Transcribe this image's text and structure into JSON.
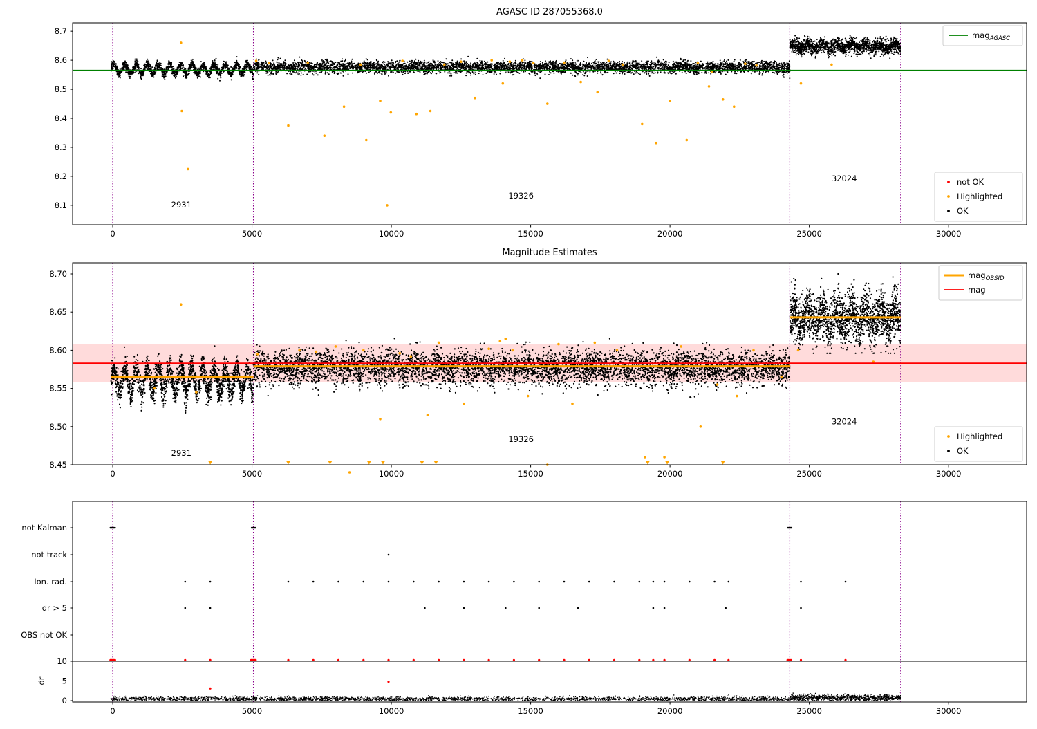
{
  "colors": {
    "ok": "#000000",
    "highlighted": "#ffa500",
    "not_ok": "#ff0000",
    "mag_agasc_line": "#008000",
    "mag_obsid_line": "#ffa500",
    "mag_line": "#ff0000",
    "mag_band": "rgba(255,0,0,0.14)",
    "divider": "#8b008b",
    "legend_border": "#cccccc",
    "axis": "#000000"
  },
  "chart_data": [
    {
      "id": "agasc-plot",
      "type": "scatter",
      "title": "AGASC ID 287055368.0",
      "xlim": [
        -1440,
        32800
      ],
      "ylim": [
        8.033,
        8.729
      ],
      "xticks": [
        0,
        5000,
        10000,
        15000,
        20000,
        25000,
        30000
      ],
      "yticks": [
        8.1,
        8.2,
        8.3,
        8.4,
        8.5,
        8.6,
        8.7
      ],
      "ytick_decimals": 1,
      "dividers": [
        0,
        5050,
        24300,
        28280
      ],
      "hline": {
        "y": 8.565,
        "legend_label": {
          "main": "mag",
          "sub": "AGASC"
        }
      },
      "clusters": [
        {
          "x0": -60,
          "x1": 5050,
          "mean": 8.569,
          "wave_amp": 0.016,
          "wave_period": 400,
          "noise": 0.008,
          "n": 1700,
          "clamp": [
            8.528,
            8.612
          ],
          "seed": 11
        },
        {
          "x0": 5050,
          "x1": 24300,
          "mean": 8.576,
          "wave_amp": 0.003,
          "wave_period": 800,
          "noise": 0.01,
          "n": 5200,
          "clamp": [
            8.538,
            8.615
          ],
          "seed": 12
        },
        {
          "x0": 24300,
          "x1": 28280,
          "mean": 8.648,
          "wave_amp": 0.008,
          "wave_period": 520,
          "noise": 0.012,
          "n": 1700,
          "clamp": [
            8.603,
            8.697
          ],
          "seed": 13
        }
      ],
      "highlighted": [
        [
          2450,
          8.66
        ],
        [
          2480,
          8.425
        ],
        [
          2700,
          8.225
        ],
        [
          5150,
          8.598
        ],
        [
          5600,
          8.59
        ],
        [
          6300,
          8.375
        ],
        [
          7000,
          8.592
        ],
        [
          7600,
          8.34
        ],
        [
          8300,
          8.44
        ],
        [
          8900,
          8.585
        ],
        [
          9100,
          8.325
        ],
        [
          9600,
          8.46
        ],
        [
          9850,
          8.1
        ],
        [
          9980,
          8.42
        ],
        [
          10400,
          8.598
        ],
        [
          10900,
          8.415
        ],
        [
          11400,
          8.425
        ],
        [
          11900,
          8.585
        ],
        [
          12500,
          8.595
        ],
        [
          13000,
          8.47
        ],
        [
          13600,
          8.6
        ],
        [
          14000,
          8.52
        ],
        [
          14250,
          8.595
        ],
        [
          14700,
          8.6
        ],
        [
          15100,
          8.59
        ],
        [
          15600,
          8.45
        ],
        [
          16200,
          8.592
        ],
        [
          16800,
          8.525
        ],
        [
          17400,
          8.49
        ],
        [
          17800,
          8.598
        ],
        [
          18300,
          8.585
        ],
        [
          19000,
          8.38
        ],
        [
          19500,
          8.315
        ],
        [
          20000,
          8.46
        ],
        [
          20600,
          8.325
        ],
        [
          21000,
          8.59
        ],
        [
          21400,
          8.51
        ],
        [
          21500,
          8.56
        ],
        [
          21900,
          8.465
        ],
        [
          22300,
          8.44
        ],
        [
          22700,
          8.588
        ],
        [
          23100,
          8.582
        ],
        [
          24700,
          8.52
        ],
        [
          25800,
          8.585
        ]
      ],
      "annotations": [
        {
          "text": "2931",
          "x": 2100,
          "y": 8.093
        },
        {
          "text": "19326",
          "x": 14200,
          "y": 8.124
        },
        {
          "text": "32024",
          "x": 25800,
          "y": 8.183
        }
      ],
      "marker_legend": [
        {
          "label": "not OK",
          "color_key": "not_ok"
        },
        {
          "label": "Highlighted",
          "color_key": "highlighted"
        },
        {
          "label": "OK",
          "color_key": "ok"
        }
      ]
    },
    {
      "id": "magnitude-estimates-plot",
      "type": "scatter",
      "title": "Magnitude Estimates",
      "xlim": [
        -1440,
        32800
      ],
      "ylim": [
        8.45,
        8.7145
      ],
      "xticks": [
        0,
        5000,
        10000,
        15000,
        20000,
        25000,
        30000
      ],
      "yticks": [
        8.45,
        8.5,
        8.55,
        8.6,
        8.65,
        8.7
      ],
      "ytick_decimals": 2,
      "dividers": [
        0,
        5050,
        24300,
        28280
      ],
      "mag_line": {
        "y": 8.583,
        "band": [
          8.558,
          8.608
        ],
        "legend_label": "mag"
      },
      "obsid_segments": [
        {
          "x0": -60,
          "x1": 5050,
          "y": 8.565
        },
        {
          "x0": 5050,
          "x1": 24300,
          "y": 8.579
        },
        {
          "x0": 24300,
          "x1": 28280,
          "y": 8.643
        }
      ],
      "obsid_legend_label": {
        "main": "mag",
        "sub": "OBSID"
      },
      "clusters": [
        {
          "x0": -60,
          "x1": 5050,
          "mean": 8.561,
          "wave_amp": 0.016,
          "wave_period": 400,
          "noise": 0.009,
          "n": 1900,
          "clamp": [
            8.518,
            8.606
          ],
          "seed": 21
        },
        {
          "x0": 5050,
          "x1": 24300,
          "mean": 8.577,
          "wave_amp": 0.003,
          "wave_period": 800,
          "noise": 0.011,
          "n": 5400,
          "clamp": [
            8.536,
            8.618
          ],
          "seed": 22
        },
        {
          "x0": 24300,
          "x1": 28280,
          "mean": 8.642,
          "wave_amp": 0.01,
          "wave_period": 520,
          "noise": 0.016,
          "n": 1800,
          "clamp": [
            8.596,
            8.7
          ],
          "seed": 23
        }
      ],
      "highlighted": [
        [
          1500,
          8.55
        ],
        [
          2450,
          8.66
        ],
        [
          3000,
          8.545
        ],
        [
          5200,
          8.595
        ],
        [
          6700,
          8.6
        ],
        [
          7300,
          8.598
        ],
        [
          8000,
          8.605
        ],
        [
          8500,
          8.44
        ],
        [
          9000,
          8.6
        ],
        [
          9600,
          8.51
        ],
        [
          10300,
          8.596
        ],
        [
          10700,
          8.592
        ],
        [
          11300,
          8.515
        ],
        [
          11700,
          8.61
        ],
        [
          12600,
          8.53
        ],
        [
          13500,
          8.602
        ],
        [
          13900,
          8.612
        ],
        [
          14100,
          8.615
        ],
        [
          14350,
          8.6
        ],
        [
          14900,
          8.54
        ],
        [
          15600,
          8.45
        ],
        [
          16000,
          8.608
        ],
        [
          16500,
          8.53
        ],
        [
          17300,
          8.61
        ],
        [
          18100,
          8.6
        ],
        [
          19100,
          8.46
        ],
        [
          19800,
          8.46
        ],
        [
          20400,
          8.605
        ],
        [
          21100,
          8.5
        ],
        [
          21700,
          8.555
        ],
        [
          22400,
          8.54
        ],
        [
          23000,
          8.6
        ],
        [
          24000,
          8.565
        ],
        [
          24600,
          8.6
        ],
        [
          27300,
          8.585
        ]
      ],
      "clipped_low_x": [
        3500,
        6300,
        7800,
        9200,
        9700,
        11100,
        11600,
        19200,
        19900,
        21900
      ],
      "annotations": [
        {
          "text": "2931",
          "x": 2100,
          "y": 8.462
        },
        {
          "text": "19326",
          "x": 14200,
          "y": 8.48
        },
        {
          "text": "32024",
          "x": 25800,
          "y": 8.503
        }
      ],
      "marker_legend": [
        {
          "label": "Highlighted",
          "color_key": "highlighted"
        },
        {
          "label": "OK",
          "color_key": "ok"
        }
      ]
    },
    {
      "id": "flags-plot",
      "type": "scatter",
      "xlim": [
        -1440,
        32800
      ],
      "xticks": [
        0,
        5000,
        10000,
        15000,
        20000,
        25000,
        30000
      ],
      "dividers": [
        0,
        5050,
        24300,
        28280
      ],
      "rows": [
        {
          "label": "not Kalman",
          "points": [
            -80,
            -40,
            0,
            40,
            80,
            4990,
            5030,
            5070,
            5110,
            24240,
            24280,
            24320,
            24360
          ]
        },
        {
          "label": "not track",
          "points": [
            9900
          ]
        },
        {
          "label": "Ion. rad.",
          "points": [
            2600,
            3500,
            6300,
            7200,
            8100,
            9000,
            9900,
            10800,
            11700,
            12600,
            13500,
            14400,
            15300,
            16200,
            17100,
            18000,
            18900,
            19400,
            19800,
            20700,
            21600,
            22100,
            24700,
            26300
          ]
        },
        {
          "label": "dr > 5",
          "points": [
            2600,
            3500,
            11200,
            12600,
            14100,
            15300,
            16700,
            19400,
            19800,
            22000,
            24700
          ]
        },
        {
          "label": "OBS not OK",
          "points": []
        }
      ],
      "dr": {
        "label": "dr",
        "ticks": [
          0,
          5,
          10
        ],
        "hline": 10,
        "clip_value": 10.3,
        "clipped_red_x": [
          -80,
          -40,
          0,
          40,
          80,
          2600,
          3500,
          4970,
          5010,
          5050,
          5090,
          5130,
          6300,
          7200,
          8100,
          9000,
          9900,
          10800,
          11700,
          12600,
          13500,
          14400,
          15300,
          16200,
          17100,
          18000,
          18900,
          19400,
          19800,
          20700,
          21600,
          22100,
          24220,
          24260,
          24300,
          24340,
          24700,
          26300
        ],
        "red_points": [
          [
            3500,
            3.1
          ],
          [
            9900,
            4.8
          ]
        ],
        "clusters": [
          {
            "x0": -60,
            "x1": 24300,
            "mean": 0.45,
            "noise": 0.28,
            "n": 2400,
            "seed": 31
          },
          {
            "x0": 24300,
            "x1": 28280,
            "mean": 0.75,
            "noise": 0.38,
            "n": 800,
            "seed": 32
          }
        ]
      }
    }
  ]
}
